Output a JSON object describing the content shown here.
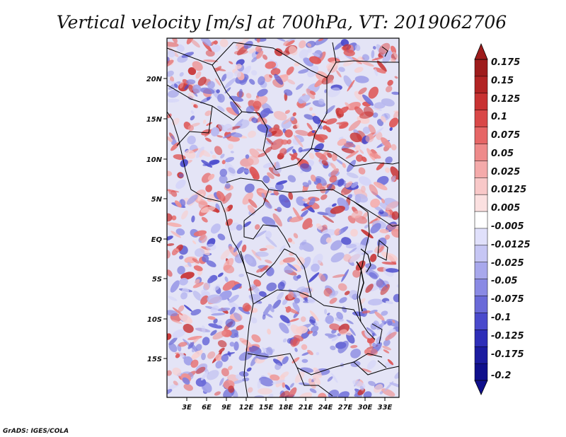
{
  "title": "Vertical velocity [m/s] at 700hPa, VT: 2019062706",
  "credit": "GrADS: IGES/COLA",
  "map": {
    "lon_range": [
      0,
      35
    ],
    "lat_range": [
      -20,
      25
    ],
    "lat_labels": [
      "20N",
      "15N",
      "10N",
      "5N",
      "EQ",
      "5S",
      "10S",
      "15S"
    ],
    "lon_labels": [
      "3E",
      "6E",
      "9E",
      "12E",
      "15E",
      "18E",
      "21E",
      "24E",
      "27E",
      "30E",
      "33E"
    ],
    "field": "vertical velocity at 700hPa (red = positive, blue = negative, noisy field)"
  },
  "colorbar": {
    "labels": [
      "0.175",
      "0.15",
      "0.125",
      "0.1",
      "0.075",
      "0.05",
      "0.025",
      "0.0125",
      "0.005",
      "-0.005",
      "-0.0125",
      "-0.025",
      "-0.05",
      "-0.075",
      "-0.1",
      "-0.125",
      "-0.175",
      "-0.2"
    ],
    "colors": [
      "#9e1c1c",
      "#b22424",
      "#c83232",
      "#d94848",
      "#e66666",
      "#ee8a8a",
      "#f4aaaa",
      "#f8c8c8",
      "#fbe0e0",
      "#ffffff",
      "#e0e0fb",
      "#c6c6f4",
      "#a8a8ec",
      "#8a8ae4",
      "#6a6ad8",
      "#4a4acc",
      "#2e2eb8",
      "#1c1ca0",
      "#10108c"
    ],
    "top_arrow_color": "#9e1c1c",
    "bottom_arrow_color": "#10108c"
  }
}
